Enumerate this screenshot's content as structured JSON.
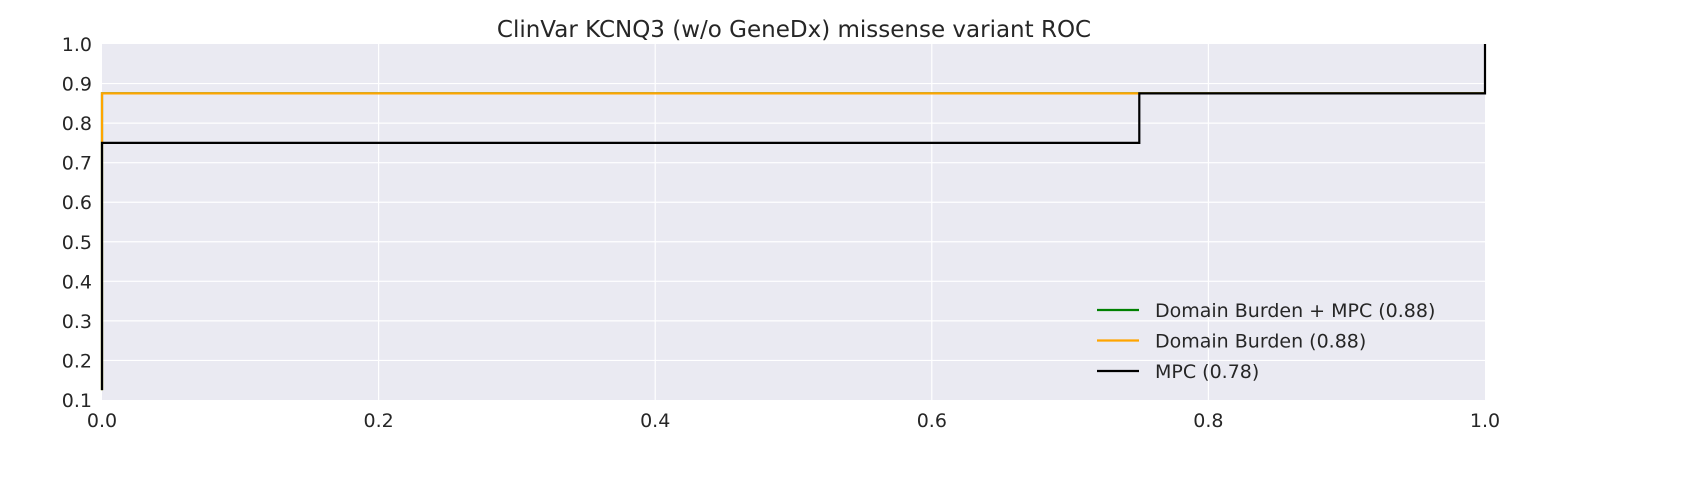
{
  "chart_data": {
    "type": "line",
    "title": "ClinVar KCNQ3 (w/o GeneDx) missense variant ROC",
    "xlabel": "",
    "ylabel": "",
    "xlim": [
      0.0,
      1.0
    ],
    "ylim": [
      0.1,
      1.0
    ],
    "x_ticks": [
      "0.0",
      "0.2",
      "0.4",
      "0.6",
      "0.8",
      "1.0"
    ],
    "y_ticks": [
      "0.1",
      "0.2",
      "0.3",
      "0.4",
      "0.5",
      "0.6",
      "0.7",
      "0.8",
      "0.9",
      "1.0"
    ],
    "grid": true,
    "legend_position": "lower-right",
    "background_color": "#eaeaf2",
    "grid_color": "#ffffff",
    "series": [
      {
        "name": "Domain Burden + MPC (0.88)",
        "color": "#008000",
        "x": [
          0.0,
          0.0,
          0.0,
          1.0
        ],
        "y": [
          0.125,
          0.75,
          0.875,
          0.875
        ]
      },
      {
        "name": "Domain Burden (0.88)",
        "color": "#ffa500",
        "x": [
          0.0,
          0.0,
          0.0,
          1.0
        ],
        "y": [
          0.125,
          0.75,
          0.875,
          0.875
        ]
      },
      {
        "name": "MPC (0.78)",
        "color": "#000000",
        "x": [
          0.0,
          0.0,
          0.75,
          0.75,
          1.0,
          1.0
        ],
        "y": [
          0.125,
          0.75,
          0.75,
          0.875,
          0.875,
          1.0
        ]
      }
    ]
  }
}
